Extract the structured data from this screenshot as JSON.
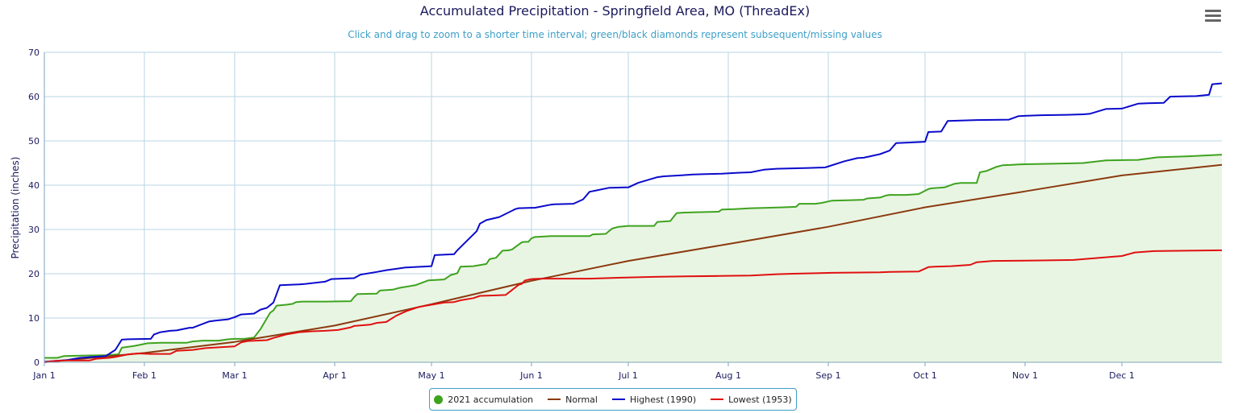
{
  "chart_data": {
    "type": "line",
    "title": "Accumulated Precipitation - Springfield Area, MO (ThreadEx)",
    "subtitle": "Click and drag to zoom to a shorter time interval; green/black diamonds represent subsequent/missing values",
    "ylabel": "Precipitation (inches)",
    "ylim": [
      0,
      70
    ],
    "yticks": [
      0,
      10,
      20,
      30,
      40,
      50,
      60,
      70
    ],
    "xlim": [
      1,
      366
    ],
    "xticks": [
      {
        "label": "Jan 1",
        "day": 1
      },
      {
        "label": "Feb 1",
        "day": 32
      },
      {
        "label": "Mar 1",
        "day": 60
      },
      {
        "label": "Apr 1",
        "day": 91
      },
      {
        "label": "May 1",
        "day": 121
      },
      {
        "label": "Jun 1",
        "day": 152
      },
      {
        "label": "Jul 1",
        "day": 182
      },
      {
        "label": "Aug 1",
        "day": 213
      },
      {
        "label": "Sep 1",
        "day": 244
      },
      {
        "label": "Oct 1",
        "day": 274
      },
      {
        "label": "Nov 1",
        "day": 305
      },
      {
        "label": "Dec 1",
        "day": 335
      }
    ],
    "grid": true,
    "legend_position": "bottom-center",
    "series": [
      {
        "name": "2021 accumulation",
        "color": "#3ea31f",
        "fill": "#e9f5e3",
        "x": [
          1,
          5,
          7,
          12,
          20,
          24,
          25,
          27,
          29,
          33,
          37,
          45,
          47,
          50,
          55,
          58,
          60,
          63,
          66,
          68,
          71,
          72,
          73,
          76,
          78,
          79,
          81,
          84,
          88,
          96,
          97,
          98,
          104,
          105,
          109,
          111,
          115,
          116,
          120,
          125,
          127,
          129,
          130,
          134,
          138,
          139,
          141,
          143,
          145,
          146,
          149,
          150,
          151,
          152,
          153,
          156,
          158,
          163,
          170,
          171,
          175,
          177,
          179,
          182,
          183,
          190,
          191,
          195,
          197,
          199,
          203,
          210,
          211,
          215,
          220,
          225,
          230,
          234,
          235,
          240,
          242,
          245,
          250,
          255,
          256,
          260,
          262,
          263,
          268,
          270,
          272,
          275,
          276,
          280,
          283,
          285,
          290,
          291,
          293,
          296,
          298,
          301,
          303,
          310,
          318,
          323,
          330,
          340,
          346,
          355,
          366
        ],
        "y": [
          1.0,
          1.0,
          1.4,
          1.5,
          1.6,
          1.8,
          3.3,
          3.5,
          3.7,
          4.3,
          4.4,
          4.4,
          4.7,
          4.9,
          4.9,
          5.2,
          5.3,
          5.3,
          5.6,
          7.5,
          11.2,
          11.7,
          12.8,
          13.0,
          13.2,
          13.6,
          13.7,
          13.7,
          13.7,
          13.8,
          14.7,
          15.4,
          15.5,
          16.2,
          16.4,
          16.8,
          17.3,
          17.4,
          18.5,
          18.7,
          19.7,
          20.1,
          21.6,
          21.7,
          22.2,
          23.3,
          23.6,
          25.2,
          25.3,
          25.5,
          27.1,
          27.2,
          27.2,
          28.0,
          28.3,
          28.4,
          28.5,
          28.5,
          28.5,
          28.9,
          29.0,
          30.2,
          30.6,
          30.8,
          30.8,
          30.8,
          31.7,
          31.9,
          33.7,
          33.8,
          33.9,
          34.0,
          34.5,
          34.6,
          34.8,
          34.9,
          35.0,
          35.1,
          35.8,
          35.8,
          36.0,
          36.5,
          36.6,
          36.7,
          37.0,
          37.2,
          37.7,
          37.8,
          37.8,
          37.9,
          38.0,
          39.1,
          39.3,
          39.5,
          40.3,
          40.5,
          40.5,
          42.9,
          43.2,
          44.1,
          44.5,
          44.6,
          44.7,
          44.8,
          44.9,
          45.0,
          45.6,
          45.7,
          46.3,
          46.5,
          46.9
        ]
      },
      {
        "name": "Normal",
        "color": "#8b3a0f",
        "x": [
          1,
          32,
          60,
          91,
          121,
          152,
          182,
          213,
          244,
          274,
          305,
          335,
          366
        ],
        "y": [
          0.0,
          2.1,
          4.6,
          8.3,
          13.1,
          18.4,
          22.9,
          26.7,
          30.6,
          35.0,
          38.6,
          42.2,
          44.6
        ]
      },
      {
        "name": "Highest (1990)",
        "color": "#0a0acc",
        "x": [
          1,
          8,
          12,
          16,
          20,
          23,
          25,
          27,
          34,
          35,
          37,
          40,
          42,
          46,
          47,
          52,
          54,
          58,
          60,
          62,
          66,
          68,
          70,
          72,
          74,
          80,
          82,
          88,
          90,
          97,
          99,
          104,
          107,
          113,
          118,
          121,
          122,
          128,
          129,
          135,
          136,
          138,
          142,
          147,
          148,
          152,
          153,
          158,
          159,
          165,
          168,
          170,
          172,
          176,
          181,
          182,
          185,
          191,
          193,
          198,
          202,
          206,
          211,
          216,
          220,
          224,
          228,
          233,
          238,
          243,
          249,
          253,
          255,
          260,
          263,
          265,
          268,
          274,
          275,
          279,
          281,
          285,
          290,
          300,
          303,
          310,
          318,
          323,
          325,
          330,
          335,
          340,
          343,
          348,
          350,
          358,
          362,
          363,
          366
        ],
        "y": [
          0.1,
          0.5,
          1.0,
          1.2,
          1.4,
          2.8,
          5.1,
          5.2,
          5.3,
          6.3,
          6.8,
          7.1,
          7.2,
          7.8,
          7.8,
          9.2,
          9.4,
          9.7,
          10.2,
          10.8,
          11.0,
          11.9,
          12.3,
          13.5,
          17.4,
          17.6,
          17.7,
          18.2,
          18.8,
          19.0,
          19.8,
          20.4,
          20.8,
          21.4,
          21.6,
          21.7,
          24.2,
          24.4,
          25.3,
          29.6,
          31.3,
          32.1,
          32.8,
          34.6,
          34.8,
          34.9,
          34.9,
          35.6,
          35.7,
          35.8,
          36.8,
          38.5,
          38.8,
          39.4,
          39.5,
          39.5,
          40.5,
          41.8,
          42.0,
          42.2,
          42.4,
          42.5,
          42.6,
          42.8,
          42.9,
          43.5,
          43.7,
          43.8,
          43.9,
          44.0,
          45.4,
          46.1,
          46.2,
          47.0,
          47.8,
          49.5,
          49.6,
          49.8,
          52.0,
          52.1,
          54.5,
          54.6,
          54.7,
          54.8,
          55.6,
          55.8,
          55.9,
          56.0,
          56.1,
          57.2,
          57.3,
          58.4,
          58.5,
          58.6,
          60.0,
          60.1,
          60.4,
          62.8,
          63.0
        ]
      },
      {
        "name": "Lowest (1953)",
        "color": "#e01010",
        "x": [
          1,
          4,
          8,
          15,
          17,
          21,
          23,
          27,
          30,
          34,
          40,
          42,
          47,
          51,
          60,
          62,
          64,
          70,
          72,
          76,
          80,
          84,
          88,
          92,
          96,
          97,
          102,
          104,
          107,
          110,
          113,
          115,
          117,
          121,
          125,
          128,
          130,
          134,
          136,
          141,
          144,
          148,
          149,
          150,
          152,
          155,
          170,
          175,
          180,
          190,
          200,
          210,
          220,
          228,
          233,
          240,
          245,
          260,
          263,
          272,
          275,
          277,
          282,
          288,
          290,
          295,
          310,
          320,
          333,
          335,
          339,
          345,
          355,
          366
        ],
        "y": [
          0.0,
          0.3,
          0.4,
          0.4,
          0.8,
          1.0,
          1.2,
          1.8,
          2.0,
          1.9,
          1.9,
          2.6,
          2.8,
          3.2,
          3.6,
          4.5,
          4.8,
          5.0,
          5.5,
          6.3,
          6.8,
          7.0,
          7.1,
          7.3,
          7.9,
          8.2,
          8.5,
          8.9,
          9.1,
          10.5,
          11.5,
          12.0,
          12.5,
          13.0,
          13.5,
          13.6,
          14.0,
          14.5,
          15.0,
          15.1,
          15.2,
          17.5,
          17.7,
          18.5,
          18.8,
          18.9,
          18.9,
          19.0,
          19.1,
          19.3,
          19.4,
          19.5,
          19.6,
          19.9,
          20.0,
          20.1,
          20.2,
          20.3,
          20.4,
          20.5,
          21.5,
          21.6,
          21.7,
          22.0,
          22.6,
          22.9,
          23.0,
          23.1,
          23.9,
          24.0,
          24.8,
          25.1,
          25.2,
          25.3
        ]
      }
    ]
  },
  "menu": {
    "icon": "hamburger-menu-icon"
  },
  "legend": {
    "items": [
      {
        "label": "2021 accumulation",
        "color": "#3ea31f",
        "marker": "dot"
      },
      {
        "label": "Normal",
        "color": "#8b3a0f",
        "marker": "line"
      },
      {
        "label": "Highest (1990)",
        "color": "#0a0acc",
        "marker": "line"
      },
      {
        "label": "Lowest (1953)",
        "color": "#e01010",
        "marker": "line"
      }
    ]
  }
}
